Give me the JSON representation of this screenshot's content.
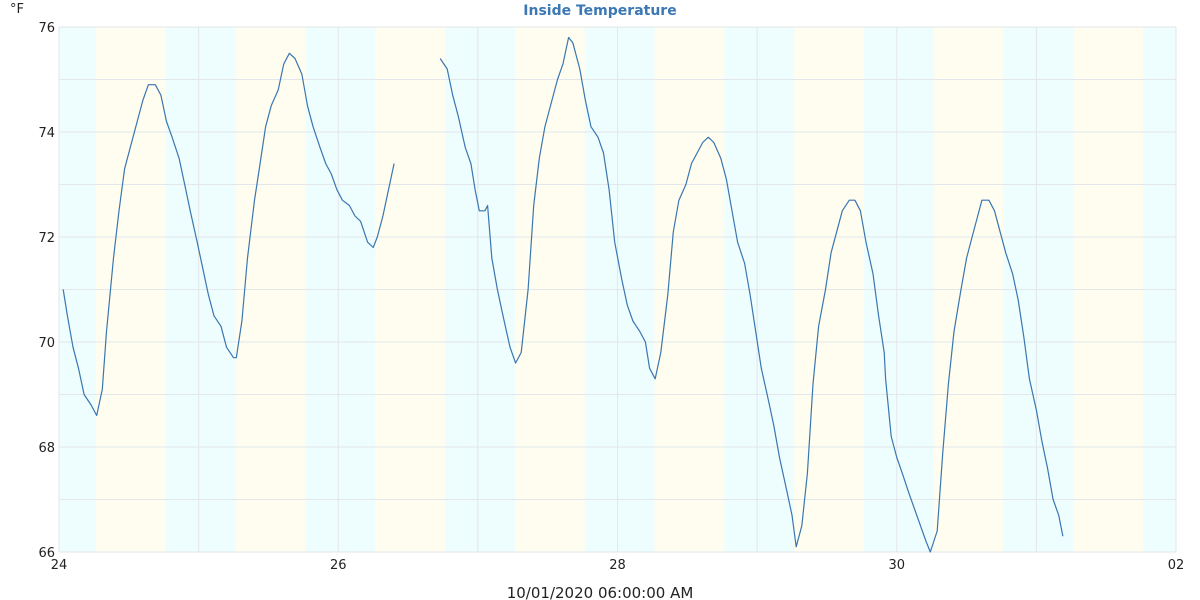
{
  "chart_data": {
    "type": "line",
    "title": "Inside Temperature",
    "ylabel": "°F",
    "xlabel": "10/01/2020 06:00:00 AM",
    "ylim": [
      66,
      76
    ],
    "xlim": [
      24,
      32
    ],
    "y_ticks": [
      66,
      68,
      70,
      72,
      74,
      76
    ],
    "x_tick_labels": [
      {
        "pos": 24,
        "label": "24"
      },
      {
        "pos": 26,
        "label": "26"
      },
      {
        "pos": 28,
        "label": "28"
      },
      {
        "pos": 30,
        "label": "30"
      },
      {
        "pos": 32,
        "label": "02"
      }
    ],
    "grid": true,
    "legend": null,
    "background_bands": {
      "night_color": "#eefdfe",
      "day_color": "#fefdf0",
      "day_start_fraction": 0.265,
      "day_end_fraction": 0.765
    },
    "line_color": "#3a76b0",
    "series": [
      {
        "name": "Inside Temperature",
        "segments": [
          [
            [
              24.03,
              71.0
            ],
            [
              24.06,
              70.5
            ],
            [
              24.1,
              69.9
            ],
            [
              24.14,
              69.5
            ],
            [
              24.18,
              69.0
            ],
            [
              24.23,
              68.8
            ],
            [
              24.27,
              68.6
            ],
            [
              24.31,
              69.1
            ],
            [
              24.34,
              70.2
            ],
            [
              24.39,
              71.6
            ],
            [
              24.43,
              72.5
            ],
            [
              24.47,
              73.3
            ],
            [
              24.51,
              73.7
            ],
            [
              24.56,
              74.2
            ],
            [
              24.6,
              74.6
            ],
            [
              24.64,
              74.9
            ],
            [
              24.69,
              74.9
            ],
            [
              24.73,
              74.7
            ],
            [
              24.77,
              74.2
            ],
            [
              24.81,
              73.9
            ],
            [
              24.86,
              73.5
            ],
            [
              24.9,
              73.0
            ],
            [
              24.94,
              72.5
            ],
            [
              24.99,
              71.9
            ],
            [
              25.03,
              71.4
            ],
            [
              25.07,
              70.9
            ],
            [
              25.11,
              70.5
            ],
            [
              25.16,
              70.3
            ],
            [
              25.2,
              69.9
            ],
            [
              25.25,
              69.7
            ],
            [
              25.27,
              69.7
            ],
            [
              25.31,
              70.4
            ],
            [
              25.35,
              71.6
            ],
            [
              25.4,
              72.7
            ],
            [
              25.44,
              73.4
            ],
            [
              25.48,
              74.1
            ],
            [
              25.52,
              74.5
            ],
            [
              25.57,
              74.8
            ],
            [
              25.61,
              75.3
            ],
            [
              25.65,
              75.5
            ],
            [
              25.69,
              75.4
            ],
            [
              25.74,
              75.1
            ],
            [
              25.78,
              74.5
            ],
            [
              25.82,
              74.1
            ],
            [
              25.87,
              73.7
            ],
            [
              25.91,
              73.4
            ],
            [
              25.95,
              73.2
            ],
            [
              25.99,
              72.9
            ],
            [
              26.03,
              72.7
            ],
            [
              26.08,
              72.6
            ],
            [
              26.12,
              72.4
            ],
            [
              26.16,
              72.3
            ],
            [
              26.21,
              71.9
            ],
            [
              26.25,
              71.8
            ],
            [
              26.28,
              72.0
            ],
            [
              26.32,
              72.4
            ],
            [
              26.36,
              72.9
            ],
            [
              26.4,
              73.4
            ]
          ],
          [
            [
              26.73,
              75.4
            ],
            [
              26.78,
              75.2
            ],
            [
              26.82,
              74.7
            ],
            [
              26.86,
              74.3
            ],
            [
              26.91,
              73.7
            ],
            [
              26.95,
              73.4
            ],
            [
              26.98,
              72.9
            ],
            [
              27.01,
              72.5
            ],
            [
              27.05,
              72.5
            ],
            [
              27.07,
              72.6
            ],
            [
              27.1,
              71.6
            ],
            [
              27.14,
              71.0
            ],
            [
              27.18,
              70.5
            ],
            [
              27.23,
              69.9
            ],
            [
              27.27,
              69.6
            ],
            [
              27.31,
              69.8
            ],
            [
              27.36,
              71.0
            ],
            [
              27.4,
              72.6
            ],
            [
              27.44,
              73.5
            ],
            [
              27.48,
              74.1
            ],
            [
              27.53,
              74.6
            ],
            [
              27.57,
              75.0
            ],
            [
              27.61,
              75.3
            ],
            [
              27.65,
              75.8
            ],
            [
              27.68,
              75.7
            ],
            [
              27.73,
              75.2
            ],
            [
              27.77,
              74.6
            ],
            [
              27.81,
              74.1
            ],
            [
              27.86,
              73.9
            ],
            [
              27.9,
              73.6
            ],
            [
              27.94,
              72.9
            ],
            [
              27.98,
              71.9
            ],
            [
              28.03,
              71.2
            ],
            [
              28.07,
              70.7
            ],
            [
              28.11,
              70.4
            ],
            [
              28.16,
              70.2
            ],
            [
              28.2,
              70.0
            ],
            [
              28.23,
              69.5
            ],
            [
              28.27,
              69.3
            ],
            [
              28.31,
              69.8
            ],
            [
              28.36,
              70.9
            ],
            [
              28.4,
              72.1
            ],
            [
              28.44,
              72.7
            ],
            [
              28.49,
              73.0
            ],
            [
              28.53,
              73.4
            ],
            [
              28.57,
              73.6
            ],
            [
              28.61,
              73.8
            ],
            [
              28.65,
              73.9
            ],
            [
              28.69,
              73.8
            ],
            [
              28.74,
              73.5
            ],
            [
              28.78,
              73.1
            ],
            [
              28.82,
              72.5
            ],
            [
              28.86,
              71.9
            ],
            [
              28.91,
              71.5
            ],
            [
              28.95,
              70.9
            ],
            [
              28.99,
              70.2
            ],
            [
              29.03,
              69.5
            ],
            [
              29.08,
              68.9
            ],
            [
              29.12,
              68.4
            ],
            [
              29.16,
              67.8
            ],
            [
              29.21,
              67.2
            ],
            [
              29.25,
              66.7
            ],
            [
              29.28,
              66.1
            ],
            [
              29.32,
              66.5
            ],
            [
              29.36,
              67.5
            ],
            [
              29.4,
              69.2
            ],
            [
              29.44,
              70.3
            ],
            [
              29.49,
              71.0
            ],
            [
              29.53,
              71.7
            ],
            [
              29.57,
              72.1
            ],
            [
              29.61,
              72.5
            ],
            [
              29.66,
              72.7
            ],
            [
              29.7,
              72.7
            ],
            [
              29.74,
              72.5
            ],
            [
              29.78,
              71.9
            ],
            [
              29.83,
              71.3
            ],
            [
              29.87,
              70.5
            ],
            [
              29.91,
              69.8
            ],
            [
              29.92,
              69.3
            ],
            [
              29.96,
              68.2
            ],
            [
              30.0,
              67.8
            ],
            [
              30.04,
              67.5
            ],
            [
              30.09,
              67.1
            ],
            [
              30.13,
              66.8
            ],
            [
              30.17,
              66.5
            ],
            [
              30.21,
              66.2
            ],
            [
              30.24,
              66.0
            ],
            [
              30.29,
              66.4
            ],
            [
              30.33,
              67.9
            ],
            [
              30.37,
              69.2
            ],
            [
              30.41,
              70.2
            ],
            [
              30.46,
              71.0
            ],
            [
              30.5,
              71.6
            ],
            [
              30.54,
              72.0
            ],
            [
              30.58,
              72.4
            ],
            [
              30.61,
              72.7
            ],
            [
              30.66,
              72.7
            ],
            [
              30.7,
              72.5
            ],
            [
              30.74,
              72.1
            ],
            [
              30.78,
              71.7
            ],
            [
              30.83,
              71.3
            ],
            [
              30.87,
              70.8
            ],
            [
              30.91,
              70.1
            ],
            [
              30.95,
              69.3
            ],
            [
              31.0,
              68.7
            ],
            [
              31.04,
              68.1
            ],
            [
              31.08,
              67.6
            ],
            [
              31.12,
              67.0
            ],
            [
              31.16,
              66.7
            ],
            [
              31.19,
              66.3
            ]
          ]
        ]
      }
    ]
  }
}
